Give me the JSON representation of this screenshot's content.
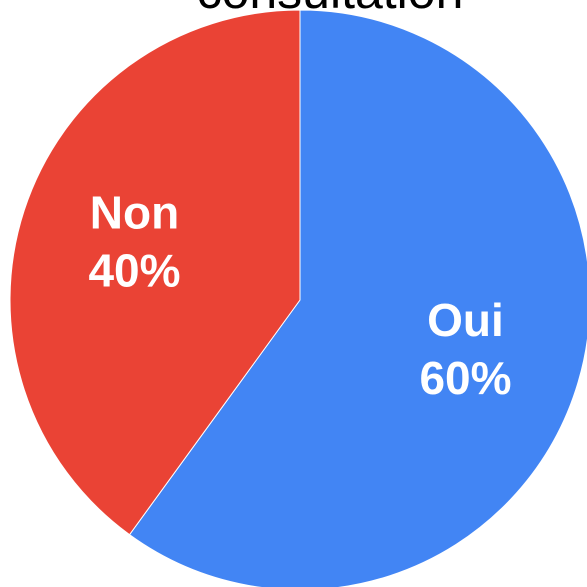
{
  "chart_data": {
    "type": "pie",
    "title": "consultation",
    "categories": [
      "Oui",
      "Non"
    ],
    "values": [
      60,
      40
    ],
    "value_labels": [
      "60%",
      "40%"
    ],
    "colors": [
      "#4285f4",
      "#ea4335"
    ]
  }
}
